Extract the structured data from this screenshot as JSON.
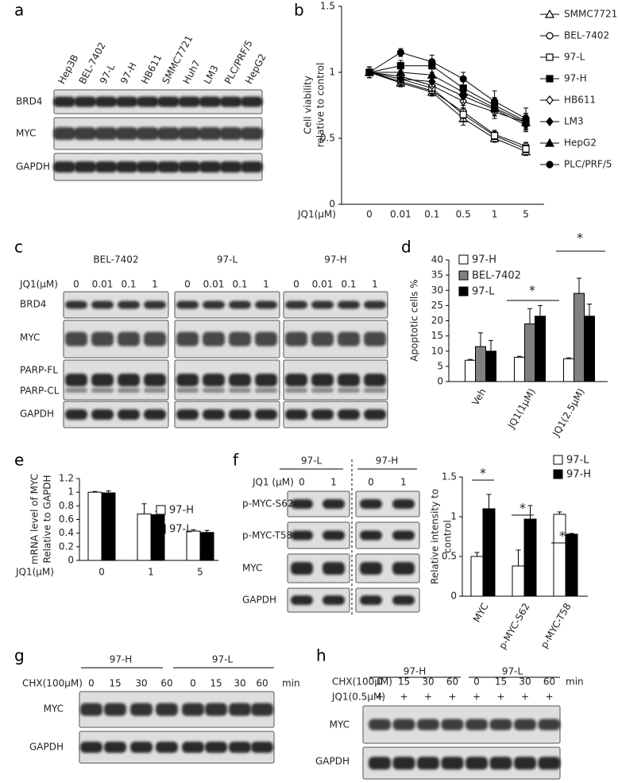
{
  "panel_labels": [
    "a",
    "b",
    "c",
    "d",
    "e",
    "f",
    "g",
    "h"
  ],
  "blot_a": {
    "lanes": [
      "Hep3B",
      "BEL-7402",
      "97-L",
      "97-H",
      "HB611",
      "SMMC7721",
      "Huh7",
      "LM3",
      "PLC/PRF/5",
      "HepG2"
    ],
    "rows": [
      "BRD4",
      "MYC",
      "GAPDH"
    ]
  },
  "blot_c": {
    "groups": [
      "BEL-7402",
      "97-L",
      "97-H"
    ],
    "treatment": "JQ1(μM)",
    "doses": [
      "0",
      "0.01",
      "0.1",
      "1",
      "0",
      "0.01",
      "0.1",
      "1",
      "0",
      "0.01",
      "0.1",
      "1"
    ],
    "rows": [
      "BRD4",
      "MYC",
      "PARP-FL",
      "PARP-CL",
      "GAPDH"
    ]
  },
  "blot_f": {
    "groups": [
      "97-L",
      "97-H"
    ],
    "treatment": "JQ1 (μM)",
    "doses": [
      "0",
      "1",
      "0",
      "1"
    ],
    "rows": [
      "p-MYC-S62",
      "p-MYC-T58",
      "MYC",
      "GAPDH"
    ]
  },
  "blot_g": {
    "groups": [
      "97-H",
      "97-L"
    ],
    "treatment": "CHX(100μM)",
    "times": [
      "0",
      "15",
      "30",
      "60",
      "0",
      "15",
      "30",
      "60"
    ],
    "time_unit": "min",
    "rows": [
      "MYC",
      "GAPDH"
    ]
  },
  "blot_h": {
    "groups": [
      "97-H",
      "97-L"
    ],
    "treatment": "CHX(100μM)",
    "times": [
      "0",
      "15",
      "30",
      "60",
      "0",
      "15",
      "30",
      "60"
    ],
    "time_unit": "min",
    "cotreatment": "JQ1(0.5μM)",
    "cotreatment_marks": [
      "+",
      "+",
      "+",
      "+",
      "+",
      "+",
      "+",
      "+"
    ],
    "rows": [
      "MYC",
      "GAPDH"
    ]
  },
  "chart_data": [
    {
      "type": "line",
      "y_label": [
        "Cell viability",
        "relative  to  control"
      ],
      "x_label": "JQ1(μM)",
      "categories": [
        "0",
        "0.01",
        "0.1",
        "0.5",
        "1",
        "5"
      ],
      "ylim": [
        0,
        1.5
      ],
      "yticks": [
        0,
        0.5,
        1,
        1.5
      ],
      "series": [
        {
          "name": "SMMC7721",
          "color": "#000000",
          "marker": "triangle",
          "filled": false,
          "values": [
            1.0,
            0.92,
            0.85,
            0.65,
            0.5,
            0.4
          ],
          "errors": [
            0.04,
            0.03,
            0.03,
            0.05,
            0.03,
            0.03
          ]
        },
        {
          "name": "BEL-7402",
          "color": "#000000",
          "marker": "circle",
          "filled": false,
          "values": [
            1.0,
            0.93,
            0.86,
            0.7,
            0.53,
            0.44
          ],
          "errors": [
            0.04,
            0.03,
            0.03,
            0.05,
            0.03,
            0.03
          ]
        },
        {
          "name": "97-L",
          "color": "#000000",
          "marker": "square",
          "filled": false,
          "values": [
            1.0,
            0.95,
            0.88,
            0.68,
            0.52,
            0.42
          ],
          "errors": [
            0.04,
            0.03,
            0.04,
            0.05,
            0.03,
            0.03
          ]
        },
        {
          "name": "97-H",
          "color": "#000000",
          "marker": "square",
          "filled": true,
          "values": [
            1.0,
            1.05,
            1.05,
            0.88,
            0.75,
            0.63
          ],
          "errors": [
            0.04,
            0.04,
            0.05,
            0.05,
            0.06,
            0.06
          ]
        },
        {
          "name": "HB611",
          "color": "#000000",
          "marker": "diamond",
          "filled": false,
          "values": [
            1.0,
            0.97,
            0.9,
            0.78,
            0.7,
            0.62
          ],
          "errors": [
            0.04,
            0.04,
            0.04,
            0.05,
            0.05,
            0.05
          ]
        },
        {
          "name": "LM3",
          "color": "#000000",
          "marker": "diamond",
          "filled": true,
          "values": [
            1.0,
            0.95,
            0.93,
            0.82,
            0.72,
            0.6
          ],
          "errors": [
            0.04,
            0.04,
            0.04,
            0.05,
            0.05,
            0.05
          ]
        },
        {
          "name": "HepG2",
          "color": "#000000",
          "marker": "triangle",
          "filled": true,
          "values": [
            1.0,
            1.0,
            0.98,
            0.85,
            0.73,
            0.62
          ],
          "errors": [
            0.04,
            0.04,
            0.05,
            0.05,
            0.06,
            0.06
          ]
        },
        {
          "name": "PLC/PRF/5",
          "color": "#000000",
          "marker": "circle",
          "filled": true,
          "values": [
            1.0,
            1.15,
            1.08,
            0.95,
            0.78,
            0.65
          ],
          "errors": [
            0.04,
            0.03,
            0.05,
            0.05,
            0.08,
            0.08
          ]
        }
      ]
    },
    {
      "type": "bar",
      "y_label": [
        "Apoptotic cells %"
      ],
      "categories": [
        "Veh",
        "JQ1(1μM)",
        "JQ1(2.5μM)"
      ],
      "ylim": [
        0,
        40
      ],
      "yticks": [
        0,
        5,
        10,
        15,
        20,
        25,
        30,
        35,
        40
      ],
      "series": [
        {
          "name": "97-H",
          "color": "#ffffff",
          "values": [
            7,
            8,
            7.5
          ],
          "errors": [
            0.3,
            0.3,
            0.3
          ]
        },
        {
          "name": "BEL-7402",
          "color": "#808080",
          "values": [
            11.5,
            19,
            29
          ],
          "errors": [
            4.5,
            5,
            5
          ]
        },
        {
          "name": "97-L",
          "color": "#000000",
          "values": [
            10,
            21.5,
            21.5
          ],
          "errors": [
            3.5,
            3.5,
            4
          ]
        }
      ],
      "annotations": [
        "*",
        "*"
      ]
    },
    {
      "type": "bar",
      "y_label": [
        "mRNA level of MYC",
        "Relative to GAPDH"
      ],
      "x_label": "JQ1(μM)",
      "categories": [
        "0",
        "1",
        "5"
      ],
      "ylim": [
        0,
        1.2
      ],
      "yticks": [
        0,
        0.2,
        0.4,
        0.6,
        0.8,
        1,
        1.2
      ],
      "series": [
        {
          "name": "97-H",
          "color": "#ffffff",
          "values": [
            1.0,
            0.68,
            0.43
          ],
          "errors": [
            0.01,
            0.15,
            0.02
          ]
        },
        {
          "name": "97-L",
          "color": "#000000",
          "values": [
            0.99,
            0.67,
            0.41
          ],
          "errors": [
            0.03,
            0.05,
            0.03
          ]
        }
      ]
    },
    {
      "type": "bar",
      "y_label": [
        "Relative intensity to",
        "control"
      ],
      "categories": [
        "MYC",
        "p-MYC-S62",
        "p-MYC-T58"
      ],
      "ylim": [
        0,
        1.5
      ],
      "yticks": [
        0,
        0.5,
        1,
        1.5
      ],
      "series": [
        {
          "name": "97-L",
          "color": "#ffffff",
          "values": [
            0.5,
            0.38,
            1.03
          ],
          "errors": [
            0.05,
            0.2,
            0.03
          ]
        },
        {
          "name": "97-H",
          "color": "#000000",
          "values": [
            1.1,
            0.97,
            0.78
          ],
          "errors": [
            0.18,
            0.17,
            0.01
          ]
        }
      ],
      "annotations": [
        "*",
        "*",
        "*"
      ]
    }
  ]
}
